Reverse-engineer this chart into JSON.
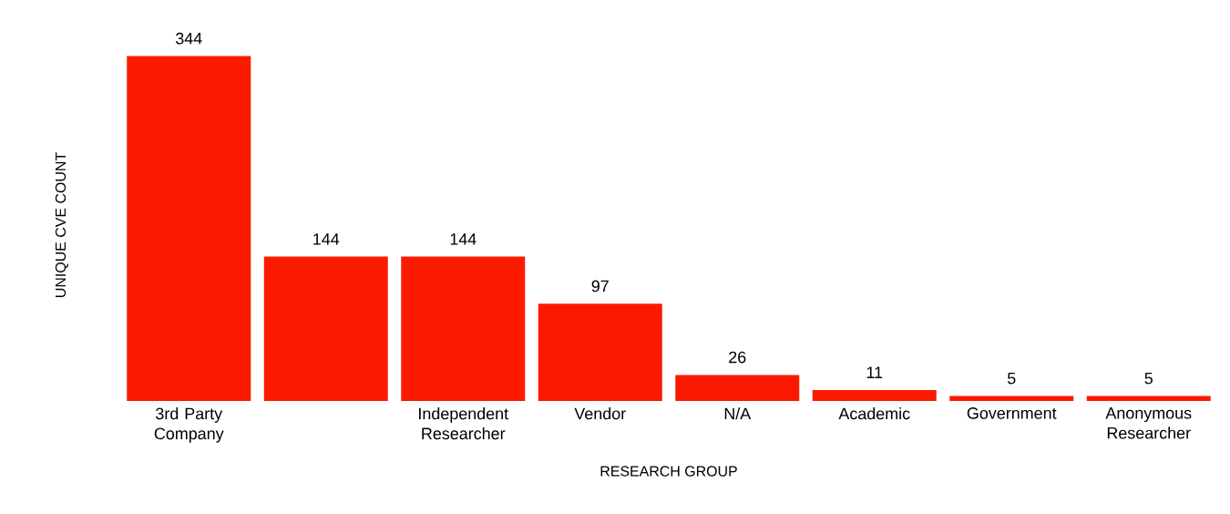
{
  "chart_data": {
    "type": "bar",
    "xlabel": "RESEARCH GROUP",
    "ylabel": "UNIQUE CVE COUNT",
    "categories": [
      "3rd Party Company",
      null,
      "Independent Researcher",
      "Vendor",
      "N/A",
      "Academic",
      "Government",
      "Anonymous Researcher"
    ],
    "values": [
      344,
      144,
      144,
      97,
      26,
      11,
      5,
      5
    ],
    "color": "#fb1a00",
    "data_labels": true
  }
}
